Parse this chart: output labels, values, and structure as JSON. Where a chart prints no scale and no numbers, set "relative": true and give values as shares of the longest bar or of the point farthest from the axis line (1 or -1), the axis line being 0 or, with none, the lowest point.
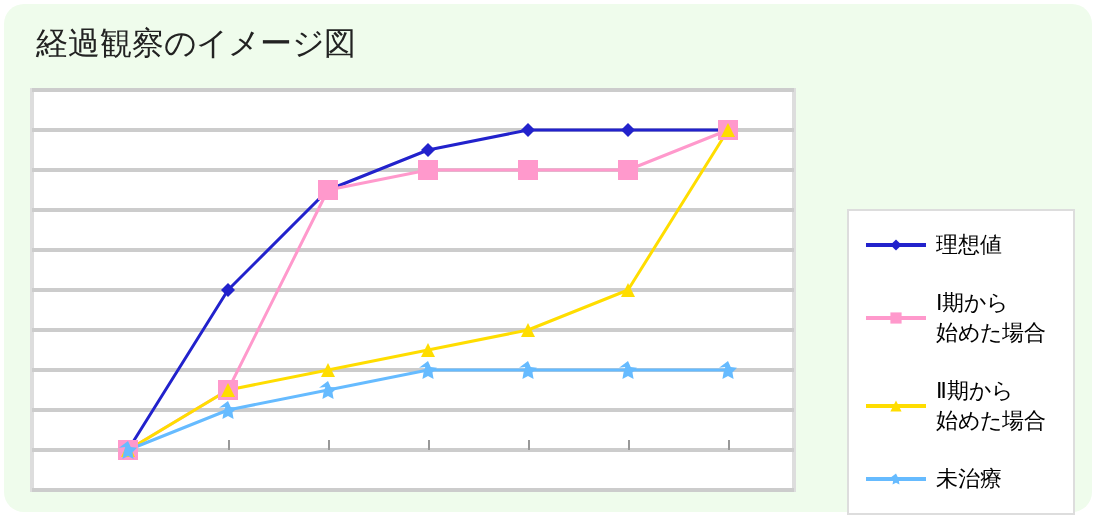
{
  "chart_data": {
    "type": "line",
    "title": "経過観察のイメージ図",
    "relative": true,
    "categories": [
      null,
      null,
      null,
      null,
      null,
      null,
      null
    ],
    "grid": "y",
    "legend": "right",
    "series": [
      {
        "name": "理想値",
        "color": "#2222cc",
        "marker": "diamond",
        "values": [
          0,
          0.5,
          0.8125,
          0.9375,
          1,
          1,
          1
        ]
      },
      {
        "name": "Ⅰ期から始めた場合",
        "color": "#ff99cc",
        "marker": "square",
        "values": [
          0,
          0.1875,
          0.8125,
          0.875,
          0.875,
          0.875,
          1
        ]
      },
      {
        "name": "Ⅱ期から始めた場合",
        "color": "#ffdd00",
        "marker": "triangle",
        "values": [
          0,
          0.1875,
          0.25,
          0.3125,
          0.375,
          0.5,
          1
        ]
      },
      {
        "name": "未治療",
        "color": "#66bbff",
        "marker": "star",
        "values": [
          0,
          0.125,
          0.1875,
          0.25,
          0.25,
          0.25,
          0.25
        ]
      }
    ]
  }
}
